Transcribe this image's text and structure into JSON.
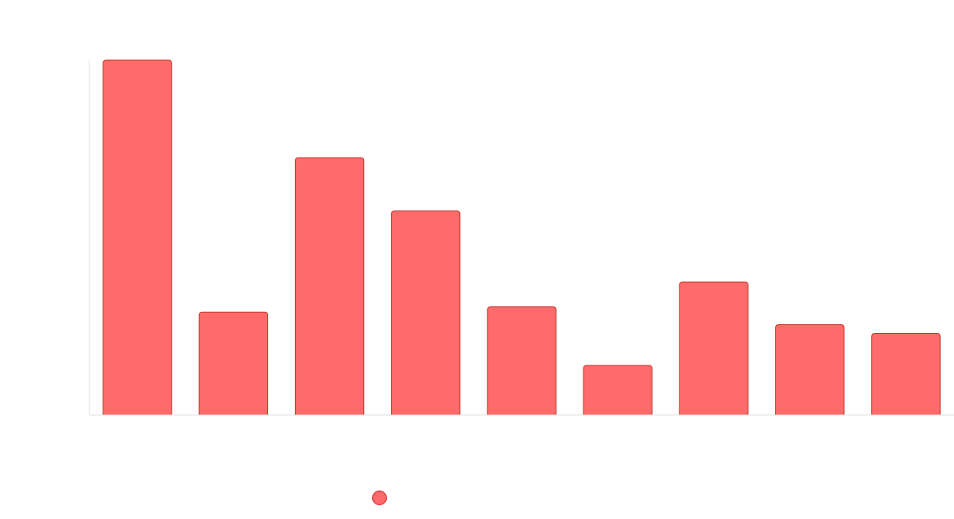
{
  "chart_data": {
    "type": "bar",
    "title": "",
    "xlabel": "",
    "ylabel": "",
    "categories": [
      "",
      "",
      "",
      "",
      "",
      "",
      "",
      "",
      ""
    ],
    "series": [
      {
        "name": "",
        "values": [
          100,
          29,
          72.5,
          57.5,
          30.5,
          14,
          37.5,
          25.5,
          23
        ]
      }
    ],
    "ylim": [
      0,
      100
    ],
    "grid": false,
    "legend": "bottom",
    "colors": {
      "bar_fill": "#ff6b6b",
      "bar_stroke": "#c0392b",
      "axis": "#e0e0e0",
      "legend_dot": "#ff6b6b",
      "legend_dot_stroke": "#d63c3c"
    }
  }
}
